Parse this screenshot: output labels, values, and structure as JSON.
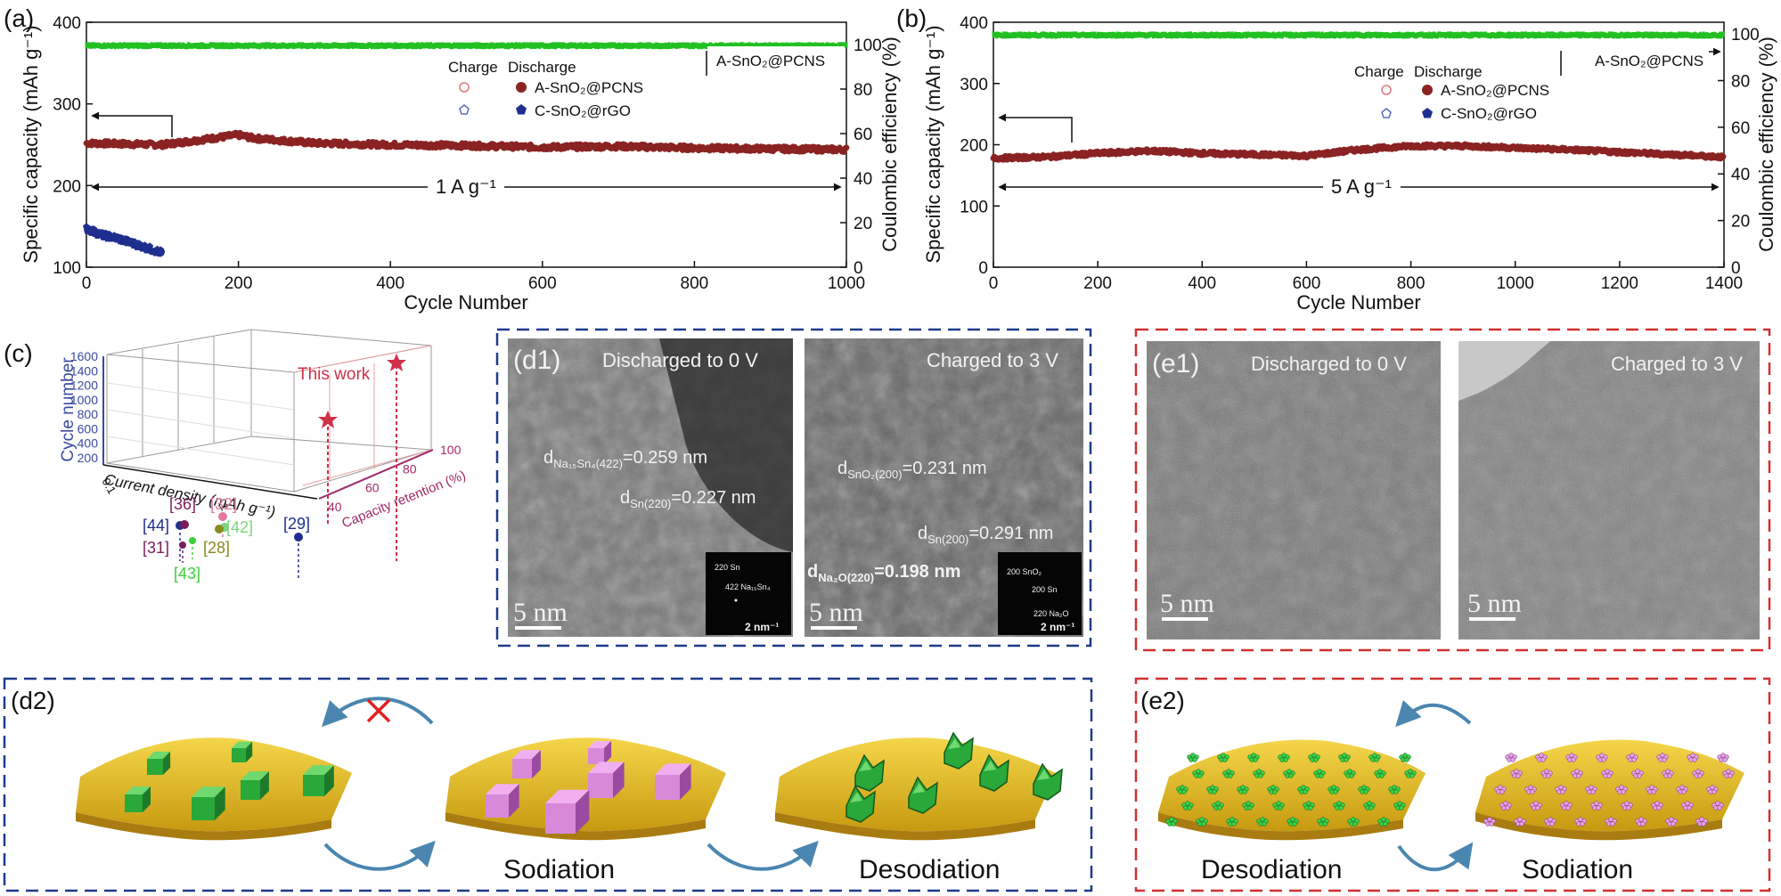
{
  "chart_data": [
    {
      "panel": "(a)",
      "type": "scatter",
      "xlabel": "Cycle Number",
      "ylabel": "Specific capacity (mAh g⁻¹)",
      "y2label": "Coulombic efficiency (%)",
      "xlim": [
        0,
        1000
      ],
      "ylim": [
        100,
        400
      ],
      "y2lim": [
        0,
        110
      ],
      "xticks": [
        0,
        200,
        400,
        600,
        800,
        1000
      ],
      "yticks": [
        100,
        200,
        300,
        400
      ],
      "y2ticks": [
        0,
        20,
        40,
        60,
        80,
        100
      ],
      "legend_title_charge": "Charge",
      "legend_title_discharge": "Discharge",
      "legend_placement": "top-center",
      "rate_label": "1 A g⁻¹",
      "box_label": "A-SnO₂@PCNS",
      "series": [
        {
          "name": "A-SnO₂@PCNS",
          "kind": "capacity",
          "color": "#8b2323",
          "x": [
            0,
            100,
            200,
            220,
            300,
            400,
            500,
            600,
            700,
            800,
            900,
            1000
          ],
          "y": [
            252,
            250,
            262,
            258,
            252,
            250,
            249,
            247,
            248,
            246,
            245,
            244
          ]
        },
        {
          "name": "C-SnO₂@rGO",
          "kind": "capacity",
          "color": "#1f2f8f",
          "x": [
            0,
            20,
            40,
            60,
            80,
            100
          ],
          "y": [
            148,
            140,
            136,
            130,
            124,
            118
          ]
        },
        {
          "name": "A-SnO₂@PCNS",
          "kind": "coulombic_efficiency",
          "color": "#22c022",
          "x": [
            0,
            1000
          ],
          "y": [
            99.5,
            99.5
          ]
        }
      ]
    },
    {
      "panel": "(b)",
      "type": "scatter",
      "xlabel": "Cycle Number",
      "ylabel": "Specific capacity (mAh g⁻¹)",
      "y2label": "Coulombic efficiency (%)",
      "xlim": [
        0,
        1400
      ],
      "ylim": [
        0,
        400
      ],
      "y2lim": [
        0,
        105
      ],
      "xticks": [
        0,
        200,
        400,
        600,
        800,
        1000,
        1200,
        1400
      ],
      "yticks": [
        0,
        100,
        200,
        300,
        400
      ],
      "y2ticks": [
        0,
        20,
        40,
        60,
        80,
        100
      ],
      "legend_title_charge": "Charge",
      "legend_title_discharge": "Discharge",
      "legend_placement": "top-right",
      "rate_label": "5 A g⁻¹",
      "box_label": "A-SnO₂@PCNS",
      "series": [
        {
          "name": "A-SnO₂@PCNS",
          "kind": "capacity",
          "color": "#8b2323",
          "x": [
            0,
            100,
            200,
            300,
            400,
            500,
            600,
            700,
            800,
            900,
            1000,
            1100,
            1200,
            1300,
            1400
          ],
          "y": [
            178,
            180,
            186,
            190,
            186,
            184,
            182,
            192,
            198,
            198,
            195,
            192,
            188,
            184,
            180
          ]
        },
        {
          "name": "C-SnO₂@rGO",
          "kind": "capacity",
          "color": "#1f2f8f",
          "x": [],
          "y": []
        },
        {
          "name": "A-SnO₂@PCNS",
          "kind": "coulombic_efficiency",
          "color": "#22c022",
          "x": [
            0,
            1400
          ],
          "y": [
            99.5,
            99.5
          ]
        }
      ]
    },
    {
      "panel": "(c)",
      "type": "scatter",
      "xlabel": "Current density (mAh g⁻¹)",
      "ylabel": "Cycle number",
      "zlabel": "Capacity retention (%)",
      "yticks": [
        200,
        400,
        600,
        800,
        1000,
        1200,
        1400,
        1600
      ],
      "xticks": [
        "0.1",
        "1"
      ],
      "zticks": [
        40,
        60,
        80,
        100
      ],
      "annotation": "This work",
      "points": [
        {
          "label": "[44]",
          "color": "#1f2f8f"
        },
        {
          "label": "[36]",
          "color": "#7a1f5c"
        },
        {
          "label": "[31]",
          "color": "#7a1f5c"
        },
        {
          "label": "[32]",
          "color": "#e07aa0"
        },
        {
          "label": "[42]",
          "color": "#7ed37e"
        },
        {
          "label": "[28]",
          "color": "#8a8a20"
        },
        {
          "label": "[43]",
          "color": "#3ad03a"
        },
        {
          "label": "[29]",
          "color": "#1f2f8f"
        }
      ]
    }
  ],
  "panel_labels": {
    "a": "(a)",
    "b": "(b)",
    "c": "(c)",
    "d1": "(d1)",
    "e1": "(e1)",
    "d2": "(d2)",
    "e2": "(e2)"
  },
  "tem": {
    "d1_left_title": "Discharged to 0 V",
    "d1_right_title": "Charged to 3 V",
    "e1_left_title": "Discharged to 0 V",
    "e1_right_title": "Charged to 3 V",
    "scale": "5 nm",
    "inset_scale": "2 nm⁻¹",
    "d1_left_labels": [
      "d",
      "Na₁₅Sn₄(422)",
      "=0.259 nm",
      "d",
      "Sn(220)",
      "=0.227 nm"
    ],
    "d1_right_labels": [
      "d",
      "SnO₂(200)",
      "=0.231 nm",
      "d",
      "Sn(200)",
      "=0.291 nm",
      "d",
      "Na₂O(220)",
      "=0.198 nm"
    ],
    "inset_left": [
      "220 Sn",
      "422 Na₁₅Sn₄"
    ],
    "inset_right": [
      "200 SnO₂",
      "200 Sn",
      "220 Na₂O"
    ]
  },
  "schematic": {
    "d2_sodiation": "Sodiation",
    "d2_desodiation": "Desodiation",
    "e2_desodiation": "Desodiation",
    "e2_sodiation": "Sodiation"
  },
  "colors": {
    "capacity_a": "#8b2323",
    "capacity_c": "#1f2f8f",
    "ce": "#22c022",
    "blue_box": "#1f3a8a",
    "red_box": "#d03030",
    "substrate": "#e8c020",
    "green_cube": "#2aa83a",
    "pink_cube": "#d889d8"
  }
}
